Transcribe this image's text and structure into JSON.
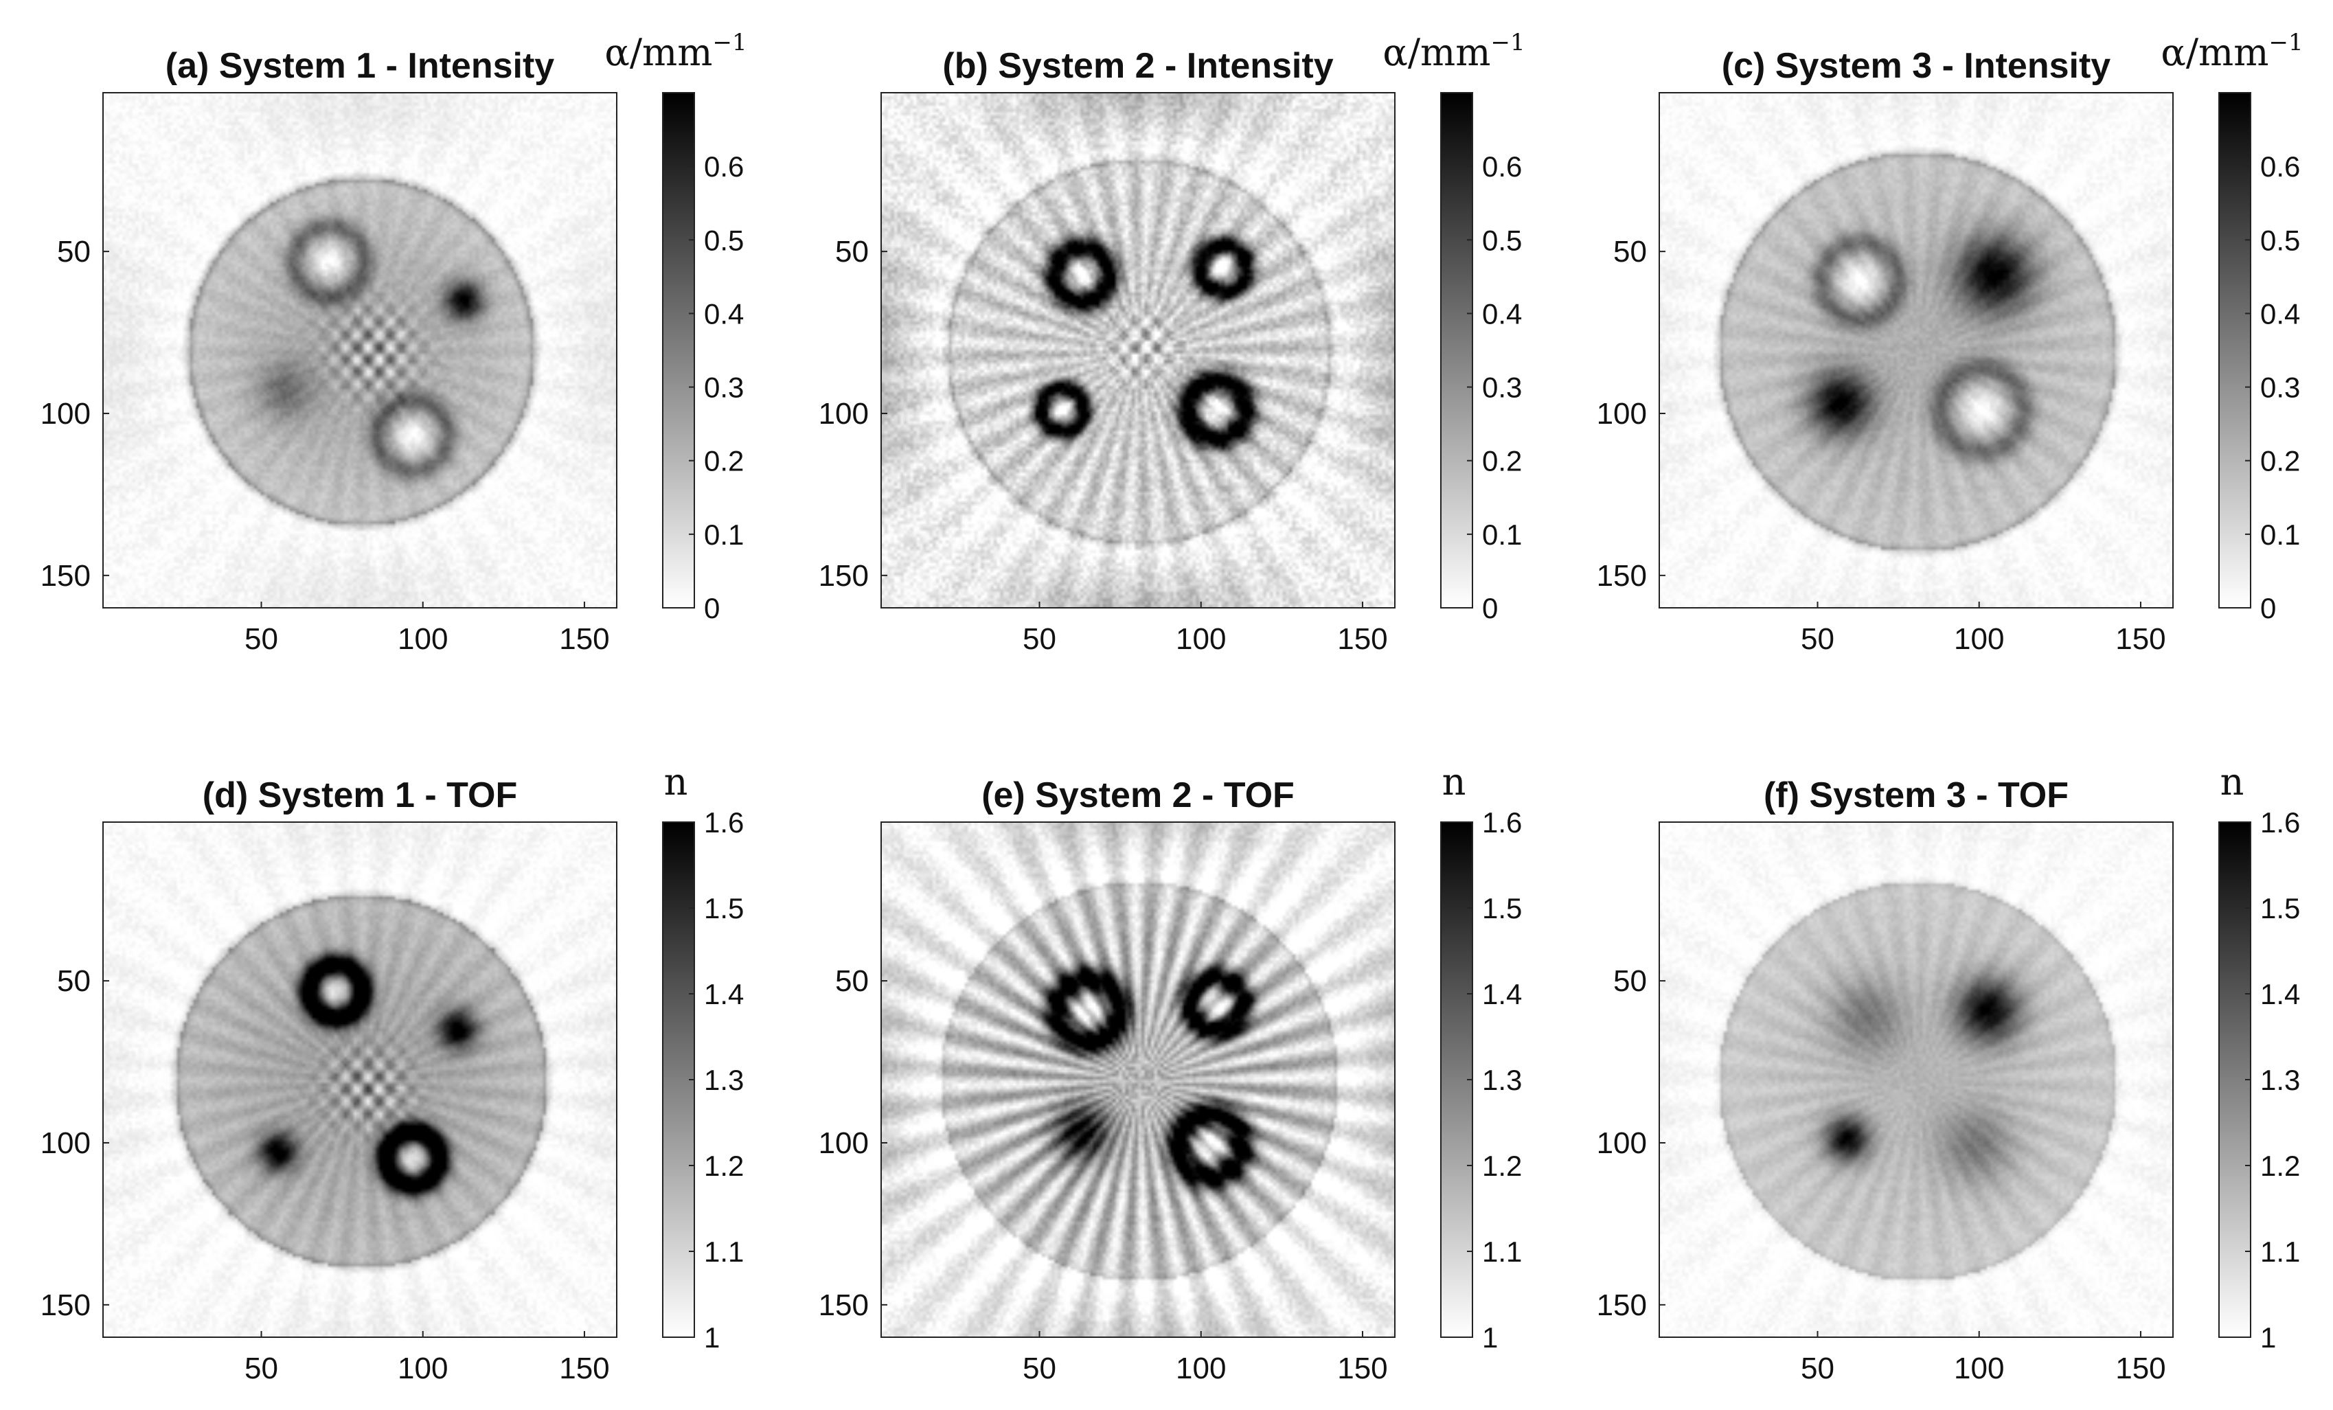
{
  "chart_data": [
    {
      "type": "heatmap",
      "title": "(a) System 1 - Intensity",
      "colorbar": {
        "label": "α/mm",
        "label_sup": "−1",
        "ticks": [
          "0",
          "0.1",
          "0.2",
          "0.3",
          "0.4",
          "0.5",
          "0.6"
        ],
        "range": [
          0,
          0.7
        ]
      },
      "xticks": [
        "50",
        "100",
        "150"
      ],
      "yticks": [
        "50",
        "100",
        "150"
      ],
      "xlim": [
        1,
        160
      ],
      "ylim": [
        1,
        160
      ],
      "colormap": "gray-reversed",
      "pattern": {
        "ring_r": 54,
        "ring_w": 0.05,
        "bg": 0.22,
        "inside": 0.34,
        "outer": 0.08,
        "streaks": 0.03,
        "noise": 0.08,
        "spread": 1.0,
        "blobs": [
          {
            "x": 70,
            "y": 52,
            "r": 11,
            "k": "ringed"
          },
          {
            "x": 112,
            "y": 64,
            "r": 6,
            "k": "dark"
          },
          {
            "x": 96,
            "y": 106,
            "r": 11,
            "k": "ringed"
          },
          {
            "x": 84,
            "y": 80,
            "r": 14,
            "k": "mottled"
          },
          {
            "x": 56,
            "y": 92,
            "r": 9,
            "k": "soft"
          }
        ]
      }
    },
    {
      "type": "heatmap",
      "title": "(b) System 2 - Intensity",
      "colorbar": {
        "label": "α/mm",
        "label_sup": "−1",
        "ticks": [
          "0",
          "0.1",
          "0.2",
          "0.3",
          "0.4",
          "0.5",
          "0.6"
        ],
        "range": [
          0,
          0.7
        ]
      },
      "xticks": [
        "50",
        "100",
        "150"
      ],
      "yticks": [
        "50",
        "100",
        "150"
      ],
      "xlim": [
        1,
        160
      ],
      "ylim": [
        1,
        160
      ],
      "colormap": "gray-reversed",
      "pattern": {
        "ring_r": 60,
        "ring_w": 0.04,
        "bg": 0.16,
        "inside": 0.12,
        "outer": 0.28,
        "streaks": 0.12,
        "noise": 0.18,
        "spread": 0.8,
        "blobs": [
          {
            "x": 62,
            "y": 56,
            "r": 14,
            "k": "donut"
          },
          {
            "x": 106,
            "y": 54,
            "r": 12,
            "k": "donut"
          },
          {
            "x": 56,
            "y": 98,
            "r": 11,
            "k": "donut"
          },
          {
            "x": 104,
            "y": 98,
            "r": 15,
            "k": "donut"
          },
          {
            "x": 82,
            "y": 78,
            "r": 14,
            "k": "mottled"
          }
        ]
      }
    },
    {
      "type": "heatmap",
      "title": "(c) System 3 - Intensity",
      "colorbar": {
        "label": "α/mm",
        "label_sup": "−1",
        "ticks": [
          "0",
          "0.1",
          "0.2",
          "0.3",
          "0.4",
          "0.5",
          "0.6"
        ],
        "range": [
          0,
          0.7
        ]
      },
      "xticks": [
        "50",
        "100",
        "150"
      ],
      "yticks": [
        "50",
        "100",
        "150"
      ],
      "xlim": [
        1,
        160
      ],
      "ylim": [
        1,
        160
      ],
      "colormap": "gray-reversed",
      "pattern": {
        "ring_r": 62,
        "ring_w": 0.04,
        "bg": 0.22,
        "inside": 0.2,
        "outer": 0.06,
        "streaks": 0.04,
        "noise": 0.07,
        "spread": 1.0,
        "blobs": [
          {
            "x": 62,
            "y": 58,
            "r": 12,
            "k": "ringed"
          },
          {
            "x": 104,
            "y": 56,
            "r": 12,
            "k": "dark"
          },
          {
            "x": 56,
            "y": 96,
            "r": 10,
            "k": "dark"
          },
          {
            "x": 100,
            "y": 98,
            "r": 13,
            "k": "ringed"
          }
        ]
      }
    },
    {
      "type": "heatmap",
      "title": "(d) System 1 - TOF",
      "colorbar": {
        "label": "n",
        "label_sup": "",
        "ticks": [
          "1",
          "1.1",
          "1.2",
          "1.3",
          "1.4",
          "1.5",
          "1.6"
        ],
        "range": [
          1,
          1.6
        ]
      },
      "xticks": [
        "50",
        "100",
        "150"
      ],
      "yticks": [
        "50",
        "100",
        "150"
      ],
      "xlim": [
        1,
        160
      ],
      "ylim": [
        1,
        160
      ],
      "colormap": "gray-reversed",
      "pattern": {
        "ring_r": 58,
        "ring_w": 0.04,
        "bg": 0.26,
        "inside": 0.3,
        "outer": 0.06,
        "streaks": 0.05,
        "noise": 0.07,
        "spread": 1.0,
        "blobs": [
          {
            "x": 72,
            "y": 52,
            "r": 11,
            "k": "donut"
          },
          {
            "x": 110,
            "y": 64,
            "r": 6,
            "k": "dark"
          },
          {
            "x": 54,
            "y": 102,
            "r": 6,
            "k": "dark"
          },
          {
            "x": 96,
            "y": 104,
            "r": 11,
            "k": "donut"
          },
          {
            "x": 82,
            "y": 82,
            "r": 13,
            "k": "mottled"
          }
        ]
      }
    },
    {
      "type": "heatmap",
      "title": "(e) System 2 - TOF",
      "colorbar": {
        "label": "n",
        "label_sup": "",
        "ticks": [
          "1",
          "1.1",
          "1.2",
          "1.3",
          "1.4",
          "1.5",
          "1.6"
        ],
        "range": [
          1,
          1.6
        ]
      },
      "xticks": [
        "50",
        "100",
        "150"
      ],
      "yticks": [
        "50",
        "100",
        "150"
      ],
      "xlim": [
        1,
        160
      ],
      "ylim": [
        1,
        160
      ],
      "colormap": "gray-reversed",
      "pattern": {
        "ring_r": 62,
        "ring_w": 0.02,
        "bg": 0.2,
        "inside": 0.18,
        "outer": 0.24,
        "streaks": 0.22,
        "noise": 0.12,
        "spread": 1.0,
        "blobs": [
          {
            "x": 64,
            "y": 58,
            "r": 13,
            "k": "donut"
          },
          {
            "x": 104,
            "y": 56,
            "r": 11,
            "k": "donut"
          },
          {
            "x": 62,
            "y": 96,
            "r": 9,
            "k": "dark"
          },
          {
            "x": 102,
            "y": 100,
            "r": 13,
            "k": "donut"
          }
        ]
      }
    },
    {
      "type": "heatmap",
      "title": "(f) System 3 - TOF",
      "colorbar": {
        "label": "n",
        "label_sup": "",
        "ticks": [
          "1",
          "1.1",
          "1.2",
          "1.3",
          "1.4",
          "1.5",
          "1.6"
        ],
        "range": [
          1,
          1.6
        ]
      },
      "xticks": [
        "50",
        "100",
        "150"
      ],
      "yticks": [
        "50",
        "100",
        "150"
      ],
      "xlim": [
        1,
        160
      ],
      "ylim": [
        1,
        160
      ],
      "colormap": "gray-reversed",
      "pattern": {
        "ring_r": 62,
        "ring_w": 0.02,
        "bg": 0.2,
        "inside": 0.18,
        "outer": 0.05,
        "streaks": 0.04,
        "noise": 0.06,
        "spread": 1.0,
        "blobs": [
          {
            "x": 64,
            "y": 60,
            "r": 12,
            "k": "soft"
          },
          {
            "x": 102,
            "y": 58,
            "r": 10,
            "k": "dark"
          },
          {
            "x": 58,
            "y": 98,
            "r": 7,
            "k": "dark"
          },
          {
            "x": 98,
            "y": 100,
            "r": 12,
            "k": "soft"
          }
        ]
      }
    }
  ]
}
